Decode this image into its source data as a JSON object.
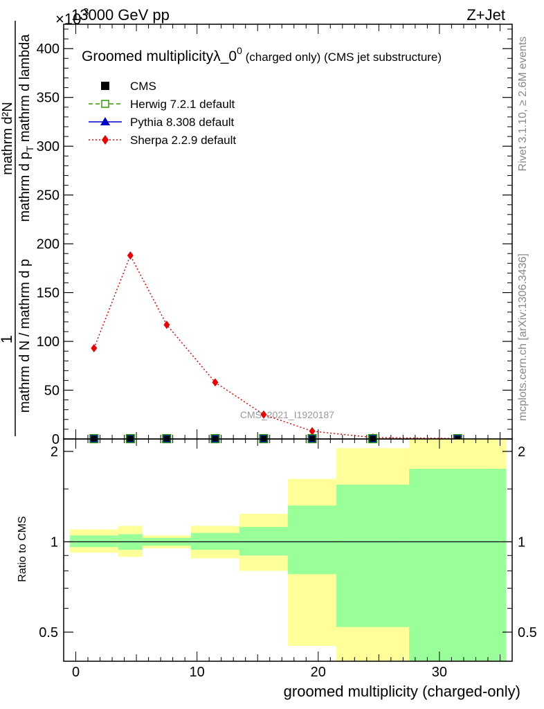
{
  "header": {
    "left": "13000 GeV pp",
    "right": "Z+Jet",
    "exponent": "×10",
    "exponent_power": "3"
  },
  "side_labels": {
    "rivet": "Rivet 3.1.10, ≥ 2.6M events",
    "mcplots": "mcplots.cern.ch [arXiv:1306.3436]"
  },
  "chart_data": [
    {
      "type": "line",
      "title": "Groomed multiplicityλ_0",
      "title_sup": "0",
      "title_suffix": " (charged only) (CMS jet substructure)",
      "ylabel_frac_num": "1",
      "ylabel_frac_den": "mathrm d N / mathrm d p",
      "ylabel_frac_den_sub": "T",
      "ylabel_frac_den_rest": "mathrm d",
      "ylabel_frac_den_sub2": "λ",
      "ylabel_main_top": "mathrm d²N",
      "ylabel_main_bottom": "mathrm d p",
      "ylabel_main_sub": "T",
      "ylabel_main_rest": " mathrm d lambda",
      "xlabel": "groomed multiplicity (charged-only)",
      "ylim": [
        0,
        425
      ],
      "xlim": [
        -1,
        36
      ],
      "y_ticks": [
        0,
        50,
        100,
        150,
        200,
        250,
        300,
        350,
        400
      ],
      "x_ticks": [
        0,
        10,
        20,
        30
      ],
      "watermark": "CMS_2021_I1920187",
      "legend": [
        {
          "name": "CMS",
          "marker": "square-filled",
          "color": "#000000"
        },
        {
          "name": "Herwig 7.2.1 default",
          "marker": "square-open",
          "color": "#339900",
          "dash": "dashed"
        },
        {
          "name": "Pythia 8.308 default",
          "marker": "triangle",
          "color": "#0000cc",
          "dash": "solid"
        },
        {
          "name": "Sherpa 2.2.9 default",
          "marker": "diamond",
          "color": "#ee0000",
          "dash": "dotted"
        }
      ],
      "series": [
        {
          "name": "Sherpa 2.2.9 default",
          "color": "#ee0000",
          "x": [
            1.5,
            4.5,
            7.5,
            11.5,
            15.5,
            19.5,
            24.5,
            31.5
          ],
          "y": [
            93,
            188,
            117,
            58,
            25,
            8,
            1.5,
            0.5
          ]
        },
        {
          "name": "CMS",
          "color": "#000000",
          "x": [
            1.5,
            4.5,
            7.5,
            11.5,
            15.5,
            19.5,
            24.5,
            31.5
          ],
          "y": [
            0.3,
            0.3,
            0.3,
            0.3,
            0.3,
            0.3,
            0.3,
            0.3
          ]
        }
      ]
    },
    {
      "type": "area",
      "ylabel": "Ratio to CMS",
      "ylim": [
        0.4,
        2.2
      ],
      "log_scale": true,
      "y_ticks": [
        0.5,
        1,
        2
      ],
      "y_tick_labels": [
        "0.5",
        "1",
        "2"
      ],
      "bands": {
        "edges": [
          -0.5,
          3.5,
          5.5,
          9.5,
          13.5,
          17.5,
          21.5,
          27.5,
          35.5
        ],
        "yellow_low": [
          0.92,
          0.89,
          0.95,
          0.88,
          0.8,
          0.45,
          0.35,
          0.35
        ],
        "yellow_high": [
          1.1,
          1.13,
          1.05,
          1.13,
          1.24,
          1.62,
          2.05,
          2.42
        ],
        "green_low": [
          0.96,
          0.94,
          0.97,
          0.94,
          0.9,
          0.78,
          0.52,
          0.35
        ],
        "green_high": [
          1.05,
          1.06,
          1.03,
          1.07,
          1.12,
          1.32,
          1.55,
          1.75
        ]
      },
      "colors": {
        "yellow": "#ffff99",
        "green": "#99ff99",
        "line": "#000000"
      }
    }
  ]
}
